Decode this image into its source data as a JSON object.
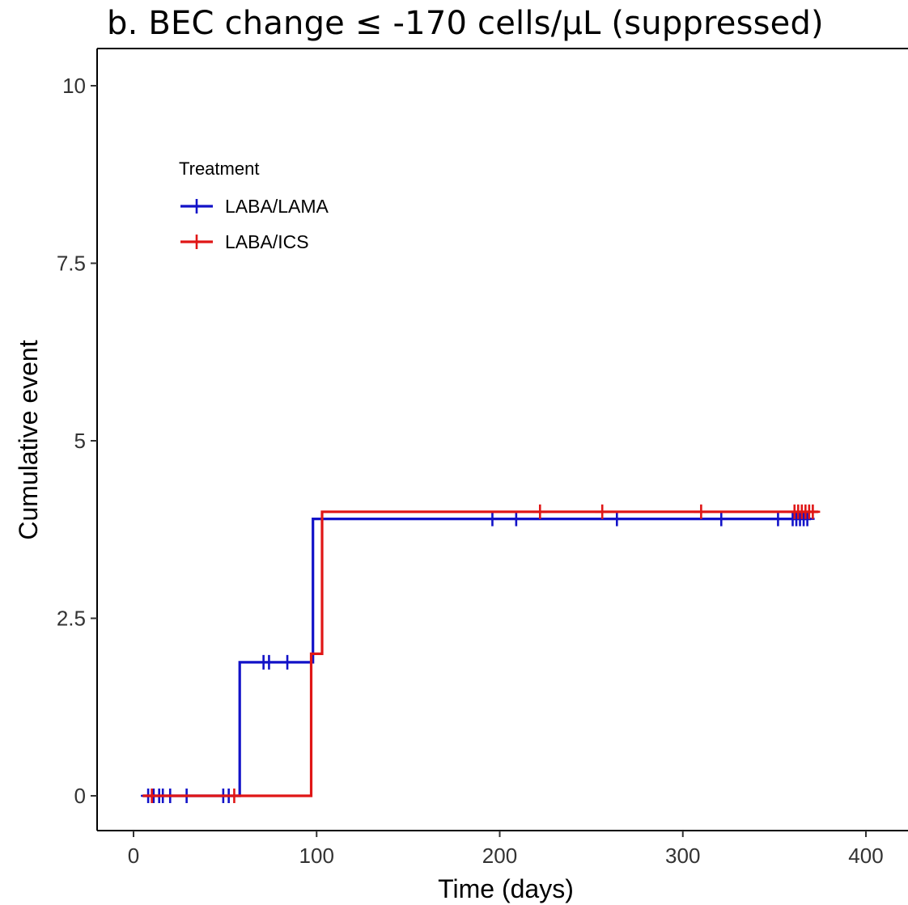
{
  "chart_data": {
    "type": "line",
    "title": "b. BEC change ≤ -170 cells/μL (suppressed)",
    "xlabel": "Time (days)",
    "ylabel": "Cumulative event",
    "xlim": [
      -20,
      420
    ],
    "ylim": [
      -0.5,
      10.5
    ],
    "x_ticks": [
      0,
      100,
      200,
      300,
      400
    ],
    "x_tick_labels": [
      "0",
      "100",
      "200",
      "300",
      "400"
    ],
    "y_ticks": [
      0,
      2.5,
      5,
      7.5,
      10
    ],
    "y_tick_labels": [
      "0",
      "2.5",
      "5",
      "7.5",
      "10"
    ],
    "grid": false,
    "legend": {
      "title": "Treatment",
      "position": "top-left"
    },
    "series": [
      {
        "name": "LABA/LAMA",
        "color": "#1212c8",
        "step_points": [
          [
            5,
            0
          ],
          [
            58,
            0
          ],
          [
            58,
            1.88
          ],
          [
            98,
            1.88
          ],
          [
            98,
            3.9
          ],
          [
            370,
            3.9
          ]
        ],
        "censor_x": [
          8,
          11,
          14,
          16,
          20,
          29,
          49,
          52,
          71,
          74,
          84,
          196,
          209,
          264,
          321,
          352,
          360,
          362,
          364,
          366,
          368
        ],
        "censor_y": [
          0,
          0,
          0,
          0,
          0,
          0,
          0,
          0,
          1.88,
          1.88,
          1.88,
          3.9,
          3.9,
          3.9,
          3.9,
          3.9,
          3.9,
          3.9,
          3.9,
          3.9,
          3.9
        ]
      },
      {
        "name": "LABA/ICS",
        "color": "#e01616",
        "step_points": [
          [
            5,
            0
          ],
          [
            97,
            0
          ],
          [
            97,
            2.0
          ],
          [
            103,
            2.0
          ],
          [
            103,
            4.0
          ],
          [
            374,
            4.0
          ]
        ],
        "censor_x": [
          10,
          55,
          222,
          256,
          310,
          361,
          363,
          365,
          367,
          369,
          371
        ],
        "censor_y": [
          0,
          0,
          4.0,
          4.0,
          4.0,
          4.0,
          4.0,
          4.0,
          4.0,
          4.0,
          4.0
        ]
      }
    ]
  }
}
